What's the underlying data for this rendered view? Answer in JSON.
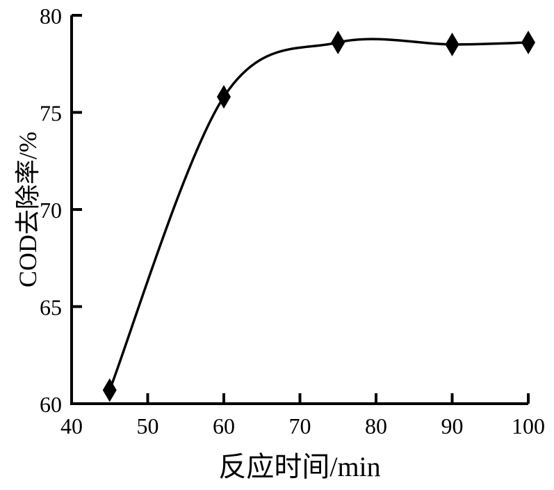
{
  "chart_data": {
    "type": "line",
    "title": "",
    "xlabel": "反应时间/min",
    "ylabel": "COD去除率/%",
    "x": [
      45,
      60,
      75,
      90,
      100
    ],
    "y": [
      60.7,
      75.8,
      78.6,
      78.5,
      78.6
    ],
    "series": [
      {
        "name": "COD去除率",
        "x": [
          45,
          60,
          75,
          90,
          100
        ],
        "values": [
          60.7,
          75.8,
          78.6,
          78.5,
          78.6
        ]
      }
    ],
    "xlim": [
      40,
      100
    ],
    "ylim": [
      60,
      80
    ],
    "x_ticks": [
      40,
      50,
      60,
      70,
      80,
      90,
      100
    ],
    "y_ticks": [
      60,
      65,
      70,
      75,
      80
    ],
    "marker": "filled-diamond",
    "curve_style": "smooth-spline",
    "grid": false,
    "legend": "none",
    "line_color": "#000000",
    "axis_color": "#000000",
    "text_color": "#000000",
    "background": "#ffffff"
  }
}
